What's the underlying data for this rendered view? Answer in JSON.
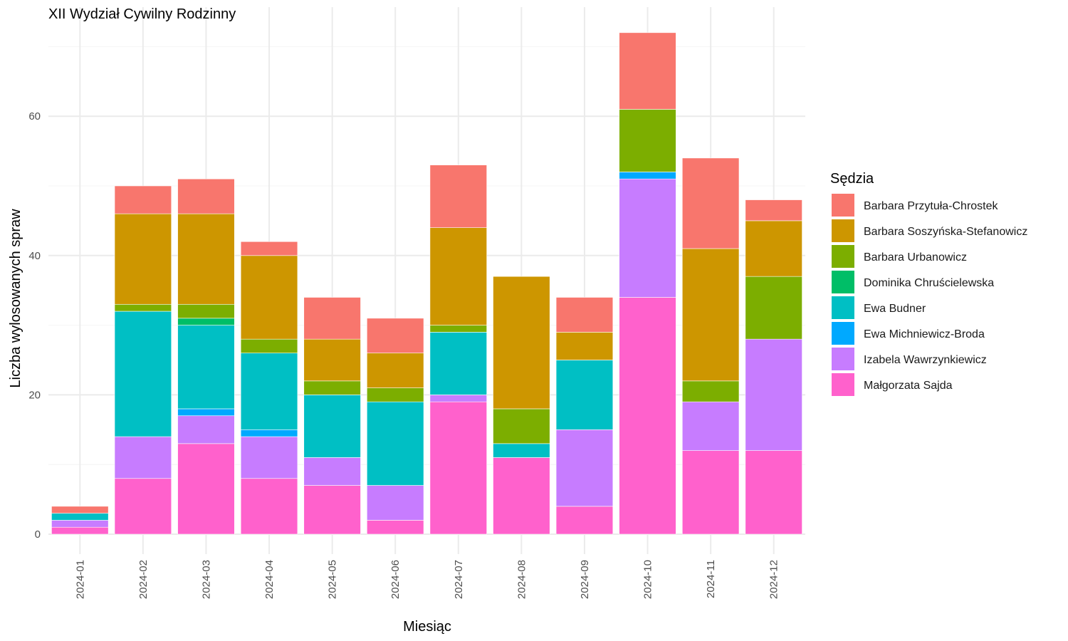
{
  "chart_data": {
    "type": "bar",
    "stacked": true,
    "title": "XII Wydział Cywilny Rodzinny",
    "xlabel": "Miesiąc",
    "ylabel": "Liczba wylosowanych spraw",
    "ylim": [
      0,
      73
    ],
    "yticks": [
      0,
      20,
      40,
      60
    ],
    "grid": true,
    "legend_position": "right",
    "legend_title": "Sędzia",
    "categories": [
      "2024-01",
      "2024-02",
      "2024-03",
      "2024-04",
      "2024-05",
      "2024-06",
      "2024-07",
      "2024-08",
      "2024-09",
      "2024-10",
      "2024-11",
      "2024-12"
    ],
    "series": [
      {
        "name": "Barbara Przytuła-Chrostek",
        "color": "#F8766D",
        "values": [
          1,
          4,
          5,
          2,
          6,
          5,
          9,
          0,
          5,
          11,
          13,
          3
        ]
      },
      {
        "name": "Barbara Soszyńska-Stefanowicz",
        "color": "#CD9600",
        "values": [
          0,
          13,
          13,
          12,
          6,
          5,
          14,
          19,
          4,
          0,
          19,
          8
        ]
      },
      {
        "name": "Barbara Urbanowicz",
        "color": "#7CAE00",
        "values": [
          0,
          1,
          2,
          2,
          2,
          2,
          1,
          5,
          0,
          9,
          3,
          9
        ]
      },
      {
        "name": "Dominika Chruścielewska",
        "color": "#00BE67",
        "values": [
          0,
          0,
          1,
          0,
          0,
          0,
          0,
          0,
          0,
          0,
          0,
          0
        ]
      },
      {
        "name": "Ewa Budner",
        "color": "#00BFC4",
        "values": [
          1,
          18,
          12,
          11,
          9,
          12,
          9,
          2,
          10,
          0,
          0,
          0
        ]
      },
      {
        "name": "Ewa Michniewicz-Broda",
        "color": "#00A9FF",
        "values": [
          0,
          0,
          1,
          1,
          0,
          0,
          0,
          0,
          0,
          1,
          0,
          0
        ]
      },
      {
        "name": "Izabela Wawrzynkiewicz",
        "color": "#C77CFF",
        "values": [
          1,
          6,
          4,
          6,
          4,
          5,
          1,
          0,
          11,
          17,
          7,
          16
        ]
      },
      {
        "name": "Małgorzata Sajda",
        "color": "#FF61CC",
        "values": [
          1,
          8,
          13,
          8,
          7,
          2,
          19,
          11,
          4,
          34,
          12,
          12
        ]
      }
    ]
  }
}
